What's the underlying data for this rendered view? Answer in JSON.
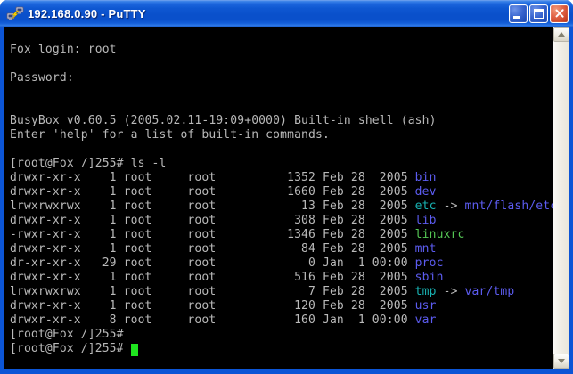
{
  "window": {
    "title": "192.168.0.90 - PuTTY"
  },
  "palette": {
    "fg": "#B9B9B9",
    "dir": "#5C5CF0",
    "sym": "#18B2B2",
    "exe": "#55C855",
    "cursor": "#1FE51F",
    "terminal_background": "#000000",
    "titlebar_blue": "#0A50CB",
    "close_button_red": "#CC4527"
  },
  "terminal": {
    "lines": [
      [],
      [
        [
          "Fox login: root",
          "fg"
        ]
      ],
      [],
      [
        [
          "Password:",
          "fg"
        ]
      ],
      [],
      [],
      [
        [
          "BusyBox v0.60.5 (2005.02.11-19:09+0000) Built-in shell (ash)",
          "fg"
        ]
      ],
      [
        [
          "Enter 'help' for a list of built-in commands.",
          "fg"
        ]
      ],
      [],
      [
        [
          "[root@Fox /]255# ls -l",
          "fg"
        ]
      ],
      [
        [
          "drwxr-xr-x    1 root     root          1352 Feb 28  2005 ",
          "fg"
        ],
        [
          "bin",
          "dir"
        ]
      ],
      [
        [
          "drwxr-xr-x    1 root     root          1660 Feb 28  2005 ",
          "fg"
        ],
        [
          "dev",
          "dir"
        ]
      ],
      [
        [
          "lrwxrwxrwx    1 root     root            13 Feb 28  2005 ",
          "fg"
        ],
        [
          "etc",
          "sym"
        ],
        [
          " -> ",
          "fg"
        ],
        [
          "mnt/flash/etc",
          "dir"
        ]
      ],
      [
        [
          "drwxr-xr-x    1 root     root           308 Feb 28  2005 ",
          "fg"
        ],
        [
          "lib",
          "dir"
        ]
      ],
      [
        [
          "-rwxr-xr-x    1 root     root          1346 Feb 28  2005 ",
          "fg"
        ],
        [
          "linuxrc",
          "exe"
        ]
      ],
      [
        [
          "drwxr-xr-x    1 root     root            84 Feb 28  2005 ",
          "fg"
        ],
        [
          "mnt",
          "dir"
        ]
      ],
      [
        [
          "dr-xr-xr-x   29 root     root             0 Jan  1 00:00 ",
          "fg"
        ],
        [
          "proc",
          "dir"
        ]
      ],
      [
        [
          "drwxr-xr-x    1 root     root           516 Feb 28  2005 ",
          "fg"
        ],
        [
          "sbin",
          "dir"
        ]
      ],
      [
        [
          "lrwxrwxrwx    1 root     root             7 Feb 28  2005 ",
          "fg"
        ],
        [
          "tmp",
          "sym"
        ],
        [
          " -> ",
          "fg"
        ],
        [
          "var/tmp",
          "dir"
        ]
      ],
      [
        [
          "drwxr-xr-x    1 root     root           120 Feb 28  2005 ",
          "fg"
        ],
        [
          "usr",
          "dir"
        ]
      ],
      [
        [
          "drwxr-xr-x    8 root     root           160 Jan  1 00:00 ",
          "fg"
        ],
        [
          "var",
          "dir"
        ]
      ],
      [
        [
          "[root@Fox /]255#",
          "fg"
        ]
      ],
      [
        [
          "[root@Fox /]255# ",
          "fg"
        ],
        [
          "",
          "cursor"
        ]
      ]
    ]
  }
}
